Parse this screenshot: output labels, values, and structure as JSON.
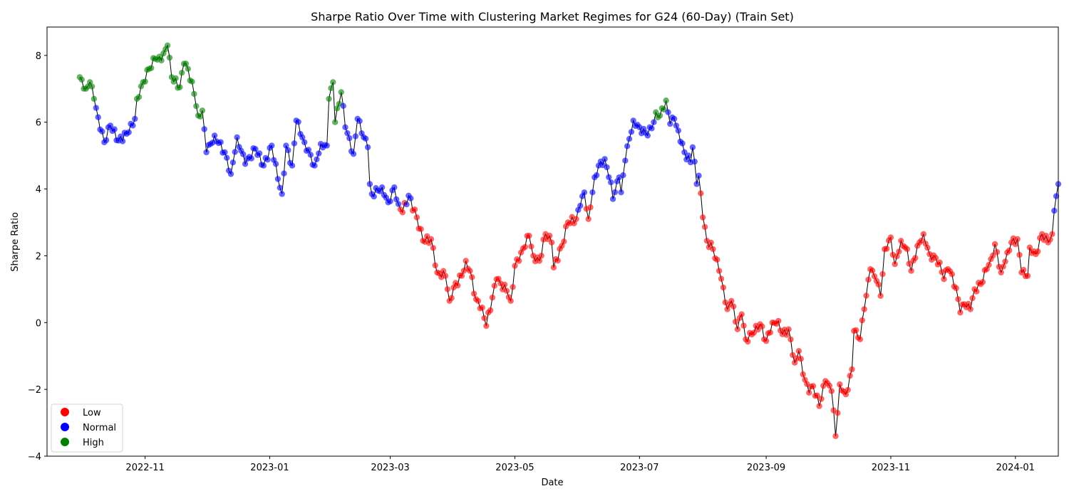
{
  "chart_data": {
    "type": "scatter",
    "title": "Sharpe Ratio Over Time with Clustering Market Regimes for G24 (60-Day) (Train Set)",
    "xlabel": "Date",
    "ylabel": "Sharpe Ratio",
    "x_ticks": [
      "2022-11",
      "2023-01",
      "2023-03",
      "2023-05",
      "2023-07",
      "2023-09",
      "2023-11",
      "2024-01"
    ],
    "x_tick_dates": [
      "2022-11-01",
      "2023-01-01",
      "2023-03-01",
      "2023-05-01",
      "2023-07-01",
      "2023-09-01",
      "2023-11-01",
      "2024-01-01"
    ],
    "xlim": [
      "2022-09-14",
      "2024-01-22"
    ],
    "ylim": [
      -4,
      8.85
    ],
    "y_ticks": [
      -4,
      -2,
      0,
      2,
      4,
      6,
      8
    ],
    "grid": false,
    "legend_position": "lower-left",
    "line_color": "#000000",
    "regimes": [
      {
        "name": "Low",
        "color": "#ff0000"
      },
      {
        "name": "Normal",
        "color": "#0000ff"
      },
      {
        "name": "High",
        "color": "#008000"
      }
    ],
    "series_anchors": [
      [
        "2022-09-30",
        7.35,
        "High"
      ],
      [
        "2022-10-03",
        7.0,
        "High"
      ],
      [
        "2022-10-05",
        7.2,
        "High"
      ],
      [
        "2022-10-07",
        6.7,
        "High"
      ],
      [
        "2022-10-09",
        6.15,
        "Normal"
      ],
      [
        "2022-10-12",
        5.4,
        "Normal"
      ],
      [
        "2022-10-15",
        5.9,
        "Normal"
      ],
      [
        "2022-10-19",
        5.45,
        "Normal"
      ],
      [
        "2022-10-24",
        5.7,
        "Normal"
      ],
      [
        "2022-10-27",
        6.1,
        "Normal"
      ],
      [
        "2022-10-28",
        6.7,
        "High"
      ],
      [
        "2022-10-31",
        7.2,
        "High"
      ],
      [
        "2022-11-03",
        7.6,
        "High"
      ],
      [
        "2022-11-06",
        7.9,
        "High"
      ],
      [
        "2022-11-09",
        7.85,
        "High"
      ],
      [
        "2022-11-12",
        8.3,
        "High"
      ],
      [
        "2022-11-14",
        7.35,
        "High"
      ],
      [
        "2022-11-18",
        7.05,
        "High"
      ],
      [
        "2022-11-20",
        7.75,
        "High"
      ],
      [
        "2022-11-22",
        7.6,
        "High"
      ],
      [
        "2022-11-25",
        6.85,
        "High"
      ],
      [
        "2022-11-27",
        6.2,
        "High"
      ],
      [
        "2022-11-29",
        6.35,
        "High"
      ],
      [
        "2022-12-01",
        5.1,
        "Normal"
      ],
      [
        "2022-12-05",
        5.6,
        "Normal"
      ],
      [
        "2022-12-10",
        5.1,
        "Normal"
      ],
      [
        "2022-12-13",
        4.45,
        "Normal"
      ],
      [
        "2022-12-16",
        5.55,
        "Normal"
      ],
      [
        "2022-12-20",
        4.75,
        "Normal"
      ],
      [
        "2022-12-25",
        5.2,
        "Normal"
      ],
      [
        "2022-12-29",
        4.7,
        "Normal"
      ],
      [
        "2023-01-02",
        5.3,
        "Normal"
      ],
      [
        "2023-01-05",
        4.3,
        "Normal"
      ],
      [
        "2023-01-07",
        3.85,
        "Normal"
      ],
      [
        "2023-01-09",
        5.3,
        "Normal"
      ],
      [
        "2023-01-12",
        4.7,
        "Normal"
      ],
      [
        "2023-01-14",
        6.05,
        "Normal"
      ],
      [
        "2023-01-18",
        5.4,
        "Normal"
      ],
      [
        "2023-01-23",
        4.7,
        "Normal"
      ],
      [
        "2023-01-26",
        5.35,
        "Normal"
      ],
      [
        "2023-01-29",
        5.3,
        "Normal"
      ],
      [
        "2023-01-30",
        6.7,
        "High"
      ],
      [
        "2023-02-01",
        7.2,
        "High"
      ],
      [
        "2023-02-02",
        6.0,
        "High"
      ],
      [
        "2023-02-05",
        6.9,
        "High"
      ],
      [
        "2023-02-07",
        5.85,
        "Normal"
      ],
      [
        "2023-02-11",
        5.05,
        "Normal"
      ],
      [
        "2023-02-13",
        6.1,
        "Normal"
      ],
      [
        "2023-02-16",
        5.55,
        "Normal"
      ],
      [
        "2023-02-18",
        5.25,
        "Normal"
      ],
      [
        "2023-02-19",
        4.15,
        "Normal"
      ],
      [
        "2023-02-20",
        3.85,
        "Normal"
      ],
      [
        "2023-02-25",
        4.05,
        "Normal"
      ],
      [
        "2023-02-28",
        3.6,
        "Normal"
      ],
      [
        "2023-03-03",
        4.05,
        "Normal"
      ],
      [
        "2023-03-05",
        3.55,
        "Normal"
      ],
      [
        "2023-03-07",
        3.3,
        "Low"
      ],
      [
        "2023-03-10",
        3.8,
        "Normal"
      ],
      [
        "2023-03-14",
        3.15,
        "Low"
      ],
      [
        "2023-03-17",
        2.45,
        "Low"
      ],
      [
        "2023-03-21",
        2.5,
        "Low"
      ],
      [
        "2023-03-24",
        1.5,
        "Low"
      ],
      [
        "2023-03-28",
        1.4,
        "Low"
      ],
      [
        "2023-03-30",
        0.65,
        "Low"
      ],
      [
        "2023-04-01",
        1.05,
        "Low"
      ],
      [
        "2023-04-05",
        1.4,
        "Low"
      ],
      [
        "2023-04-07",
        1.85,
        "Low"
      ],
      [
        "2023-04-09",
        1.55,
        "Low"
      ],
      [
        "2023-04-12",
        0.7,
        "Low"
      ],
      [
        "2023-04-15",
        0.45,
        "Low"
      ],
      [
        "2023-04-17",
        -0.1,
        "Low"
      ],
      [
        "2023-04-20",
        0.75,
        "Low"
      ],
      [
        "2023-04-22",
        1.3,
        "Low"
      ],
      [
        "2023-04-27",
        0.95,
        "Low"
      ],
      [
        "2023-04-29",
        0.65,
        "Low"
      ],
      [
        "2023-05-01",
        1.7,
        "Low"
      ],
      [
        "2023-05-04",
        2.1,
        "Low"
      ],
      [
        "2023-05-08",
        2.6,
        "Low"
      ],
      [
        "2023-05-10",
        2.0,
        "Low"
      ],
      [
        "2023-05-13",
        1.85,
        "Low"
      ],
      [
        "2023-05-16",
        2.65,
        "Low"
      ],
      [
        "2023-05-19",
        2.4,
        "Low"
      ],
      [
        "2023-05-20",
        1.65,
        "Low"
      ],
      [
        "2023-05-24",
        2.3,
        "Low"
      ],
      [
        "2023-05-27",
        3.0,
        "Low"
      ],
      [
        "2023-05-31",
        3.1,
        "Low"
      ],
      [
        "2023-06-02",
        3.5,
        "Normal"
      ],
      [
        "2023-06-04",
        3.9,
        "Normal"
      ],
      [
        "2023-06-06",
        3.1,
        "Low"
      ],
      [
        "2023-06-09",
        4.35,
        "Normal"
      ],
      [
        "2023-06-11",
        4.7,
        "Normal"
      ],
      [
        "2023-06-14",
        4.9,
        "Normal"
      ],
      [
        "2023-06-17",
        4.2,
        "Normal"
      ],
      [
        "2023-06-18",
        3.7,
        "Normal"
      ],
      [
        "2023-06-21",
        4.35,
        "Normal"
      ],
      [
        "2023-06-22",
        3.9,
        "Normal"
      ],
      [
        "2023-06-24",
        4.85,
        "Normal"
      ],
      [
        "2023-06-26",
        5.5,
        "Normal"
      ],
      [
        "2023-06-28",
        6.05,
        "Normal"
      ],
      [
        "2023-07-01",
        5.85,
        "Normal"
      ],
      [
        "2023-07-05",
        5.6,
        "Normal"
      ],
      [
        "2023-07-08",
        6.0,
        "Normal"
      ],
      [
        "2023-07-09",
        6.3,
        "High"
      ],
      [
        "2023-07-11",
        6.2,
        "High"
      ],
      [
        "2023-07-14",
        6.65,
        "High"
      ],
      [
        "2023-07-16",
        5.95,
        "Normal"
      ],
      [
        "2023-07-18",
        6.1,
        "Normal"
      ],
      [
        "2023-07-20",
        5.75,
        "Normal"
      ],
      [
        "2023-07-23",
        5.1,
        "Normal"
      ],
      [
        "2023-07-26",
        4.8,
        "Normal"
      ],
      [
        "2023-07-27",
        5.25,
        "Normal"
      ],
      [
        "2023-07-29",
        4.15,
        "Normal"
      ],
      [
        "2023-07-30",
        4.4,
        "Normal"
      ],
      [
        "2023-08-01",
        3.15,
        "Low"
      ],
      [
        "2023-08-03",
        2.45,
        "Low"
      ],
      [
        "2023-08-06",
        2.2,
        "Low"
      ],
      [
        "2023-08-09",
        1.55,
        "Low"
      ],
      [
        "2023-08-11",
        1.05,
        "Low"
      ],
      [
        "2023-08-13",
        0.4,
        "Low"
      ],
      [
        "2023-08-15",
        0.65,
        "Low"
      ],
      [
        "2023-08-18",
        -0.2,
        "Low"
      ],
      [
        "2023-08-20",
        0.25,
        "Low"
      ],
      [
        "2023-08-22",
        -0.5,
        "Low"
      ],
      [
        "2023-08-26",
        -0.3,
        "Low"
      ],
      [
        "2023-08-29",
        -0.05,
        "Low"
      ],
      [
        "2023-09-01",
        -0.55,
        "Low"
      ],
      [
        "2023-09-04",
        0.0,
        "Low"
      ],
      [
        "2023-09-07",
        0.05,
        "Low"
      ],
      [
        "2023-09-09",
        -0.35,
        "Low"
      ],
      [
        "2023-09-12",
        -0.2,
        "Low"
      ],
      [
        "2023-09-15",
        -1.2,
        "Low"
      ],
      [
        "2023-09-17",
        -0.85,
        "Low"
      ],
      [
        "2023-09-19",
        -1.55,
        "Low"
      ],
      [
        "2023-09-22",
        -2.1,
        "Low"
      ],
      [
        "2023-09-24",
        -1.9,
        "Low"
      ],
      [
        "2023-09-27",
        -2.5,
        "Low"
      ],
      [
        "2023-09-30",
        -1.75,
        "Low"
      ],
      [
        "2023-10-03",
        -2.05,
        "Low"
      ],
      [
        "2023-10-05",
        -3.4,
        "Low"
      ],
      [
        "2023-10-07",
        -1.85,
        "Low"
      ],
      [
        "2023-10-10",
        -2.15,
        "Low"
      ],
      [
        "2023-10-13",
        -1.4,
        "Low"
      ],
      [
        "2023-10-14",
        -0.25,
        "Low"
      ],
      [
        "2023-10-17",
        -0.5,
        "Low"
      ],
      [
        "2023-10-19",
        0.4,
        "Low"
      ],
      [
        "2023-10-22",
        1.6,
        "Low"
      ],
      [
        "2023-10-25",
        1.25,
        "Low"
      ],
      [
        "2023-10-27",
        0.8,
        "Low"
      ],
      [
        "2023-10-29",
        2.2,
        "Low"
      ],
      [
        "2023-11-01",
        2.55,
        "Low"
      ],
      [
        "2023-11-03",
        1.75,
        "Low"
      ],
      [
        "2023-11-06",
        2.45,
        "Low"
      ],
      [
        "2023-11-09",
        2.2,
        "Low"
      ],
      [
        "2023-11-11",
        1.55,
        "Low"
      ],
      [
        "2023-11-14",
        2.3,
        "Low"
      ],
      [
        "2023-11-17",
        2.65,
        "Low"
      ],
      [
        "2023-11-20",
        2.05,
        "Low"
      ],
      [
        "2023-11-25",
        1.8,
        "Low"
      ],
      [
        "2023-11-27",
        1.3,
        "Low"
      ],
      [
        "2023-11-29",
        1.6,
        "Low"
      ],
      [
        "2023-12-01",
        1.45,
        "Low"
      ],
      [
        "2023-12-04",
        0.7,
        "Low"
      ],
      [
        "2023-12-05",
        0.3,
        "Low"
      ],
      [
        "2023-12-07",
        0.55,
        "Low"
      ],
      [
        "2023-12-10",
        0.4,
        "Low"
      ],
      [
        "2023-12-12",
        1.0,
        "Low"
      ],
      [
        "2023-12-15",
        1.15,
        "Low"
      ],
      [
        "2023-12-18",
        1.6,
        "Low"
      ],
      [
        "2023-12-20",
        1.9,
        "Low"
      ],
      [
        "2023-12-22",
        2.35,
        "Low"
      ],
      [
        "2023-12-25",
        1.5,
        "Low"
      ],
      [
        "2023-12-28",
        2.1,
        "Low"
      ],
      [
        "2023-12-30",
        2.4,
        "Low"
      ],
      [
        "2024-01-02",
        2.5,
        "Low"
      ],
      [
        "2024-01-04",
        1.5,
        "Low"
      ],
      [
        "2024-01-07",
        1.4,
        "Low"
      ],
      [
        "2024-01-08",
        2.25,
        "Low"
      ],
      [
        "2024-01-11",
        2.05,
        "Low"
      ],
      [
        "2024-01-14",
        2.65,
        "Low"
      ],
      [
        "2024-01-17",
        2.4,
        "Low"
      ],
      [
        "2024-01-19",
        2.65,
        "Low"
      ],
      [
        "2024-01-20",
        3.35,
        "Normal"
      ],
      [
        "2024-01-22",
        4.15,
        "Normal"
      ]
    ]
  }
}
